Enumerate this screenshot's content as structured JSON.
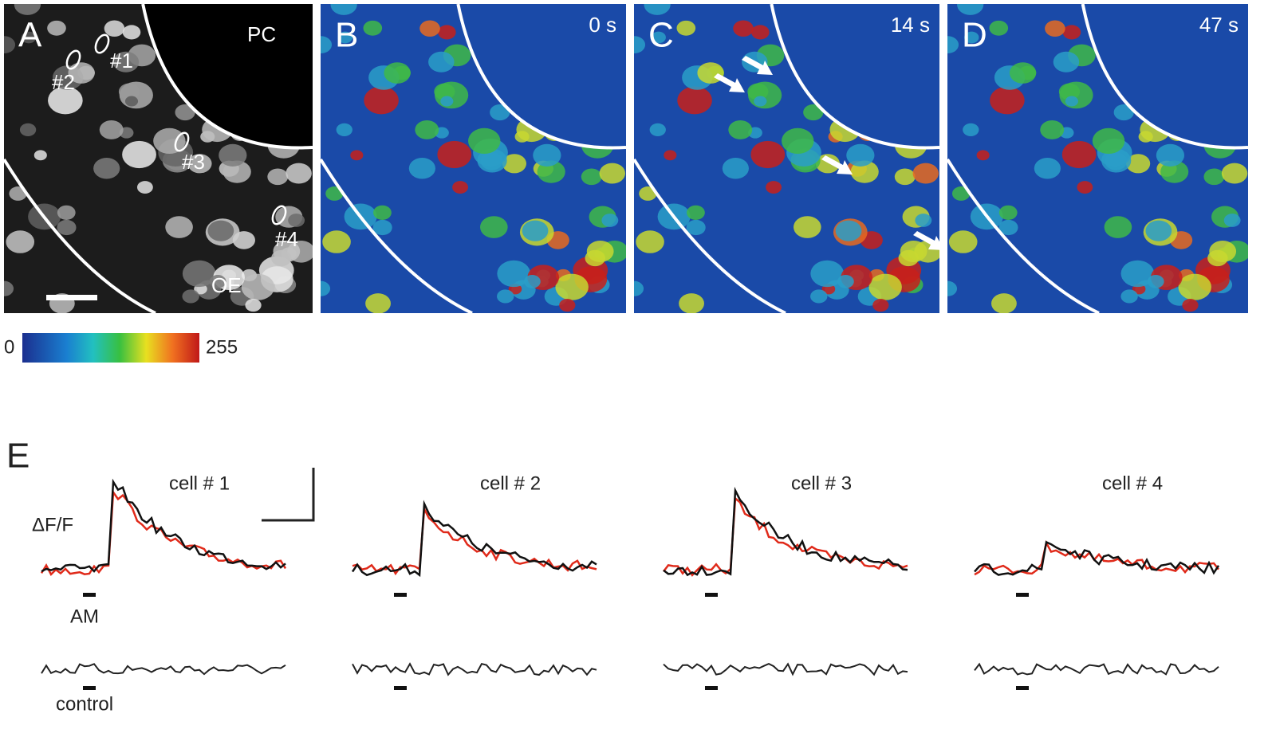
{
  "panels": [
    {
      "label": "A",
      "annotations": {
        "top": "PC",
        "bottom": "OE",
        "cells": [
          "#1",
          "#2",
          "#3",
          "#4"
        ]
      }
    },
    {
      "label": "B",
      "time": "0 s"
    },
    {
      "label": "C",
      "time": "14 s"
    },
    {
      "label": "D",
      "time": "47 s"
    }
  ],
  "colorbar": {
    "min": 0,
    "max": 255
  },
  "traces": {
    "label": "E",
    "axis_label": "ΔF/F",
    "stimulus": "AM",
    "control": "control",
    "cells": [
      "cell # 1",
      "cell # 2",
      "cell # 3",
      "cell # 4"
    ]
  }
}
